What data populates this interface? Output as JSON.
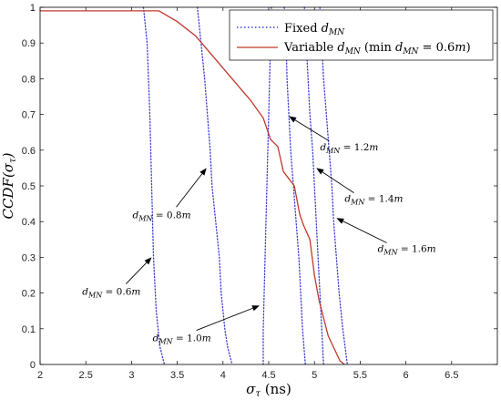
{
  "chart_data": {
    "type": "line",
    "xlim": [
      2,
      7
    ],
    "ylim": [
      0,
      1
    ],
    "xticks": [
      "2",
      "2.5",
      "3",
      "3.5",
      "4",
      "4.5",
      "5",
      "5.5",
      "6",
      "6.5"
    ],
    "yticks": [
      "0",
      "0.1",
      "0.2",
      "0.3",
      "0.4",
      "0.5",
      "0.6",
      "0.7",
      "0.8",
      "0.9",
      "1"
    ],
    "xlabel": "σ_τ (ns)",
    "ylabel": "CCDF(σ_τ)",
    "grid": false,
    "legend_position": "top-right",
    "legend": {
      "fixed": "Fixed d_MN",
      "variable": "Variable d_MN (min d_MN = 0.6m)"
    },
    "series": [
      {
        "name": "Fixed d_MN",
        "style": "dotted",
        "color": "#3c3cd2",
        "curves": [
          {
            "label": "d_MN = 0.6m",
            "points": [
              [
                3.13,
                1.0
              ],
              [
                3.17,
                0.9
              ],
              [
                3.2,
                0.7
              ],
              [
                3.22,
                0.5
              ],
              [
                3.24,
                0.3
              ],
              [
                3.27,
                0.15
              ],
              [
                3.31,
                0.05
              ],
              [
                3.36,
                0.0
              ]
            ]
          },
          {
            "label": "d_MN = 0.8m",
            "points": [
              [
                3.72,
                1.0
              ],
              [
                3.76,
                0.9
              ],
              [
                3.8,
                0.8
              ],
              [
                3.83,
                0.7
              ],
              [
                3.86,
                0.6
              ],
              [
                3.88,
                0.5
              ],
              [
                3.92,
                0.4
              ],
              [
                3.96,
                0.3
              ],
              [
                3.98,
                0.2
              ],
              [
                4.02,
                0.1
              ],
              [
                4.05,
                0.05
              ],
              [
                4.1,
                0.0
              ]
            ]
          },
          {
            "label": "d_MN = 1.0m",
            "points": [
              [
                4.53,
                1.0
              ],
              [
                4.52,
                0.9
              ],
              [
                4.51,
                0.8
              ],
              [
                4.5,
                0.7
              ],
              [
                4.49,
                0.6
              ],
              [
                4.48,
                0.5
              ],
              [
                4.47,
                0.4
              ],
              [
                4.46,
                0.3
              ],
              [
                4.45,
                0.2
              ],
              [
                4.44,
                0.1
              ],
              [
                4.44,
                0.0
              ]
            ]
          },
          {
            "label": "d_MN = 1.2m",
            "points": [
              [
                4.67,
                1.0
              ],
              [
                4.69,
                0.9
              ],
              [
                4.7,
                0.8
              ],
              [
                4.72,
                0.7
              ],
              [
                4.74,
                0.6
              ],
              [
                4.77,
                0.5
              ],
              [
                4.8,
                0.4
              ],
              [
                4.83,
                0.3
              ],
              [
                4.85,
                0.2
              ],
              [
                4.87,
                0.1
              ],
              [
                4.9,
                0.0
              ]
            ]
          },
          {
            "label": "d_MN = 1.4m",
            "points": [
              [
                4.89,
                1.0
              ],
              [
                4.91,
                0.9
              ],
              [
                4.93,
                0.8
              ],
              [
                4.95,
                0.7
              ],
              [
                4.98,
                0.6
              ],
              [
                5.0,
                0.5
              ],
              [
                5.02,
                0.4
              ],
              [
                5.04,
                0.3
              ],
              [
                5.06,
                0.2
              ],
              [
                5.08,
                0.1
              ],
              [
                5.1,
                0.0
              ]
            ]
          },
          {
            "label": "d_MN = 1.6m",
            "points": [
              [
                5.06,
                1.0
              ],
              [
                5.08,
                0.9
              ],
              [
                5.1,
                0.8
              ],
              [
                5.13,
                0.7
              ],
              [
                5.16,
                0.6
              ],
              [
                5.19,
                0.5
              ],
              [
                5.21,
                0.4
              ],
              [
                5.24,
                0.3
              ],
              [
                5.27,
                0.2
              ],
              [
                5.31,
                0.1
              ],
              [
                5.36,
                0.0
              ]
            ]
          }
        ]
      },
      {
        "name": "Variable d_MN (min d_MN = 0.6m)",
        "style": "solid",
        "color": "#c0392b",
        "points": [
          [
            2.0,
            0.99
          ],
          [
            3.3,
            0.99
          ],
          [
            3.5,
            0.96
          ],
          [
            3.7,
            0.92
          ],
          [
            3.9,
            0.86
          ],
          [
            4.1,
            0.8
          ],
          [
            4.3,
            0.74
          ],
          [
            4.44,
            0.69
          ],
          [
            4.52,
            0.63
          ],
          [
            4.6,
            0.61
          ],
          [
            4.66,
            0.54
          ],
          [
            4.72,
            0.52
          ],
          [
            4.78,
            0.5
          ],
          [
            4.84,
            0.42
          ],
          [
            4.88,
            0.39
          ],
          [
            4.95,
            0.35
          ],
          [
            5.0,
            0.25
          ],
          [
            5.05,
            0.18
          ],
          [
            5.15,
            0.08
          ],
          [
            5.28,
            0.01
          ],
          [
            5.33,
            0.0
          ]
        ]
      }
    ],
    "annotations": [
      {
        "text": "d_MN = 0.6m",
        "text_at": [
          2.78,
          0.195
        ],
        "arrow_to": [
          3.22,
          0.3
        ]
      },
      {
        "text": "d_MN = 0.8m",
        "text_at": [
          3.33,
          0.41
        ],
        "arrow_to": [
          3.82,
          0.55
        ]
      },
      {
        "text": "d_MN = 1.0m",
        "text_at": [
          3.55,
          0.065
        ],
        "arrow_to": [
          4.4,
          0.165
        ]
      },
      {
        "text": "d_MN = 1.2m",
        "text_at": [
          5.38,
          0.6
        ],
        "arrow_to": [
          4.72,
          0.695
        ]
      },
      {
        "text": "d_MN = 1.4m",
        "text_at": [
          5.65,
          0.455
        ],
        "arrow_to": [
          5.02,
          0.55
        ]
      },
      {
        "text": "d_MN = 1.6m",
        "text_at": [
          6.01,
          0.315
        ],
        "arrow_to": [
          5.24,
          0.41
        ]
      }
    ]
  }
}
